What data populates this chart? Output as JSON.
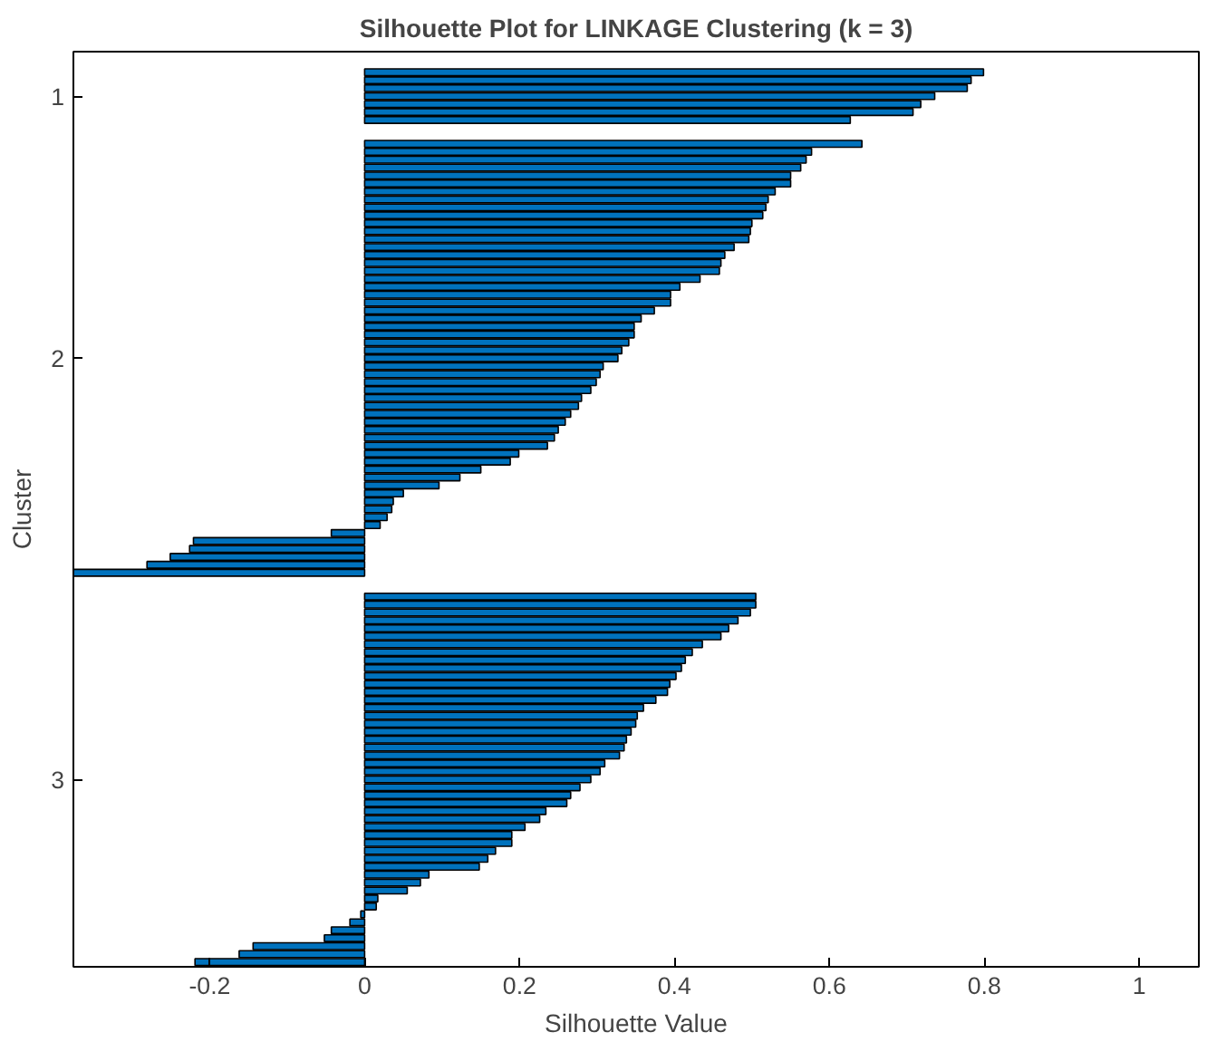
{
  "chart_data": {
    "type": "bar",
    "orientation": "horizontal",
    "title": "Silhouette Plot for LINKAGE Clustering (k = 3)",
    "xlabel": "Silhouette Value",
    "ylabel": "Cluster",
    "color": "#0072bd",
    "grid": false,
    "xlim": [
      -0.376,
      1.077
    ],
    "xticks": [
      -0.2,
      0,
      0.2,
      0.4,
      0.6,
      0.8,
      1
    ],
    "categories": [
      null,
      null,
      null,
      "1",
      null,
      null,
      null,
      null,
      null,
      null,
      null,
      null,
      null,
      null,
      null,
      null,
      null,
      null,
      null,
      null,
      null,
      null,
      null,
      null,
      null,
      null,
      null,
      null,
      null,
      null,
      null,
      null,
      null,
      null,
      null,
      null,
      "2",
      null,
      null,
      null,
      null,
      null,
      null,
      null,
      null,
      null,
      null,
      null,
      null,
      null,
      null,
      null,
      null,
      null,
      null,
      null,
      null,
      null,
      null,
      null,
      null,
      null,
      null,
      null,
      null,
      null,
      null,
      null,
      null,
      null,
      null,
      null,
      null,
      null,
      null,
      null,
      null,
      null,
      null,
      null,
      null,
      null,
      null,
      null,
      null,
      null,
      null,
      null,
      null,
      "3",
      null,
      null,
      null,
      null,
      null,
      null,
      null,
      null,
      null,
      null,
      null,
      null,
      null,
      null,
      null,
      null,
      null,
      null,
      null,
      null,
      null,
      null,
      null
    ],
    "values": [
      0.799,
      0.783,
      0.778,
      0.736,
      0.718,
      0.708,
      0.627,
      null,
      null,
      0.642,
      0.577,
      0.57,
      0.563,
      0.55,
      0.55,
      0.53,
      0.521,
      0.518,
      0.514,
      0.5,
      0.498,
      0.496,
      0.477,
      0.465,
      0.46,
      0.458,
      0.433,
      0.407,
      0.395,
      0.395,
      0.374,
      0.357,
      0.348,
      0.348,
      0.341,
      0.332,
      0.327,
      0.308,
      0.304,
      0.299,
      0.292,
      0.28,
      0.276,
      0.266,
      0.259,
      0.25,
      0.245,
      0.236,
      0.199,
      0.188,
      0.15,
      0.123,
      0.096,
      0.05,
      0.037,
      0.035,
      0.029,
      0.02,
      -0.043,
      -0.221,
      -0.226,
      -0.251,
      -0.281,
      -0.376,
      null,
      null,
      0.505,
      0.505,
      0.498,
      0.482,
      0.47,
      0.46,
      0.436,
      0.423,
      0.414,
      0.409,
      0.402,
      0.394,
      0.391,
      0.376,
      0.36,
      0.352,
      0.35,
      0.344,
      0.338,
      0.335,
      0.329,
      0.31,
      0.304,
      0.292,
      0.278,
      0.266,
      0.261,
      0.234,
      0.226,
      0.207,
      0.19,
      0.19,
      0.169,
      0.159,
      0.148,
      0.083,
      0.072,
      0.055,
      0.017,
      0.015,
      -0.005,
      -0.019,
      -0.043,
      -0.052,
      -0.144,
      -0.162,
      -0.219
    ]
  }
}
